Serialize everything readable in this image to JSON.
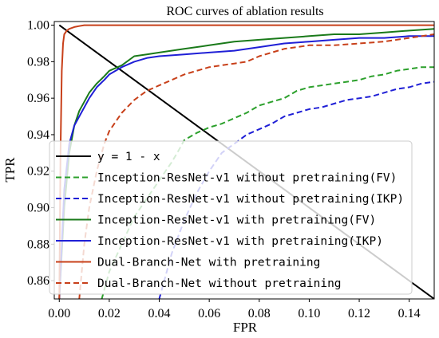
{
  "chart_data": {
    "type": "line",
    "title": "ROC curves of ablation results",
    "xlabel": "FPR",
    "ylabel": "TPR",
    "xlim": [
      -0.002,
      0.15
    ],
    "ylim": [
      0.85,
      1.002
    ],
    "x_ticks": [
      "0.00",
      "0.02",
      "0.04",
      "0.06",
      "0.08",
      "0.10",
      "0.12",
      "0.14"
    ],
    "x_tick_values": [
      0.0,
      0.02,
      0.04,
      0.06,
      0.08,
      0.1,
      0.12,
      0.14
    ],
    "y_ticks": [
      "0.86",
      "0.88",
      "0.90",
      "0.92",
      "0.94",
      "0.96",
      "0.98",
      "1.00"
    ],
    "y_tick_values": [
      0.86,
      0.88,
      0.9,
      0.92,
      0.94,
      0.96,
      0.98,
      1.0
    ],
    "legend_position": "lower-left",
    "grid": false,
    "series": [
      {
        "name": "y = 1 - x",
        "color": "#000000",
        "dash": "solid",
        "x": [
          0.0,
          0.15
        ],
        "y": [
          1.0,
          0.85
        ]
      },
      {
        "name": "Inception-ResNet-v1 without pretraining(FV)",
        "color": "#2ca02c",
        "dash": "dashed",
        "x": [
          0.017,
          0.02,
          0.025,
          0.03,
          0.035,
          0.04,
          0.045,
          0.048,
          0.05,
          0.055,
          0.06,
          0.065,
          0.07,
          0.075,
          0.08,
          0.085,
          0.09,
          0.095,
          0.1,
          0.105,
          0.11,
          0.115,
          0.12,
          0.125,
          0.13,
          0.135,
          0.14,
          0.145,
          0.15
        ],
        "y": [
          0.85,
          0.865,
          0.88,
          0.895,
          0.905,
          0.915,
          0.925,
          0.932,
          0.937,
          0.941,
          0.944,
          0.946,
          0.949,
          0.952,
          0.956,
          0.958,
          0.96,
          0.964,
          0.966,
          0.967,
          0.968,
          0.969,
          0.97,
          0.972,
          0.973,
          0.975,
          0.976,
          0.977,
          0.977
        ]
      },
      {
        "name": "Inception-ResNet-v1 without pretraining(IKP)",
        "color": "#1f1fd6",
        "dash": "dashed",
        "x": [
          0.04,
          0.045,
          0.05,
          0.055,
          0.06,
          0.065,
          0.07,
          0.075,
          0.08,
          0.085,
          0.09,
          0.095,
          0.1,
          0.105,
          0.11,
          0.115,
          0.12,
          0.125,
          0.13,
          0.135,
          0.14,
          0.145,
          0.15
        ],
        "y": [
          0.85,
          0.875,
          0.893,
          0.908,
          0.92,
          0.93,
          0.935,
          0.94,
          0.943,
          0.946,
          0.95,
          0.952,
          0.954,
          0.955,
          0.957,
          0.959,
          0.96,
          0.961,
          0.963,
          0.965,
          0.966,
          0.968,
          0.969
        ]
      },
      {
        "name": "Inception-ResNet-v1 with pretraining(FV)",
        "color": "#1a7a1a",
        "dash": "solid",
        "x": [
          0.0,
          0.002,
          0.004,
          0.006,
          0.008,
          0.01,
          0.012,
          0.015,
          0.018,
          0.02,
          0.025,
          0.03,
          0.035,
          0.04,
          0.05,
          0.06,
          0.07,
          0.08,
          0.09,
          0.1,
          0.11,
          0.12,
          0.13,
          0.14,
          0.15
        ],
        "y": [
          0.85,
          0.9,
          0.93,
          0.945,
          0.953,
          0.958,
          0.963,
          0.968,
          0.972,
          0.975,
          0.978,
          0.983,
          0.984,
          0.985,
          0.987,
          0.989,
          0.991,
          0.992,
          0.993,
          0.994,
          0.995,
          0.995,
          0.996,
          0.997,
          0.998
        ]
      },
      {
        "name": "Inception-ResNet-v1 with pretraining(IKP)",
        "color": "#1f1fd6",
        "dash": "solid",
        "x": [
          0.0,
          0.002,
          0.004,
          0.006,
          0.008,
          0.01,
          0.012,
          0.015,
          0.018,
          0.02,
          0.025,
          0.03,
          0.035,
          0.04,
          0.05,
          0.06,
          0.07,
          0.08,
          0.09,
          0.1,
          0.11,
          0.12,
          0.13,
          0.14,
          0.15
        ],
        "y": [
          0.85,
          0.91,
          0.935,
          0.945,
          0.95,
          0.955,
          0.96,
          0.966,
          0.97,
          0.973,
          0.977,
          0.98,
          0.982,
          0.983,
          0.984,
          0.985,
          0.986,
          0.988,
          0.99,
          0.991,
          0.992,
          0.993,
          0.993,
          0.994,
          0.994
        ]
      },
      {
        "name": "Dual-Branch-Net with pretraining",
        "color": "#c8401a",
        "dash": "solid",
        "x": [
          0.0,
          0.0005,
          0.001,
          0.0015,
          0.002,
          0.003,
          0.004,
          0.006,
          0.008,
          0.01,
          0.15
        ],
        "y": [
          0.85,
          0.93,
          0.975,
          0.99,
          0.995,
          0.997,
          0.998,
          0.999,
          0.9995,
          1.0,
          1.0
        ]
      },
      {
        "name": "Dual-Branch-Net without pretraining",
        "color": "#c8401a",
        "dash": "dashed",
        "x": [
          0.008,
          0.01,
          0.012,
          0.015,
          0.018,
          0.02,
          0.025,
          0.03,
          0.035,
          0.04,
          0.045,
          0.05,
          0.055,
          0.06,
          0.065,
          0.07,
          0.075,
          0.08,
          0.085,
          0.09,
          0.095,
          0.1,
          0.11,
          0.12,
          0.13,
          0.14,
          0.15
        ],
        "y": [
          0.85,
          0.88,
          0.9,
          0.92,
          0.935,
          0.942,
          0.952,
          0.959,
          0.964,
          0.967,
          0.97,
          0.973,
          0.975,
          0.977,
          0.978,
          0.979,
          0.98,
          0.983,
          0.985,
          0.987,
          0.988,
          0.989,
          0.989,
          0.99,
          0.991,
          0.993,
          0.995
        ]
      }
    ]
  }
}
